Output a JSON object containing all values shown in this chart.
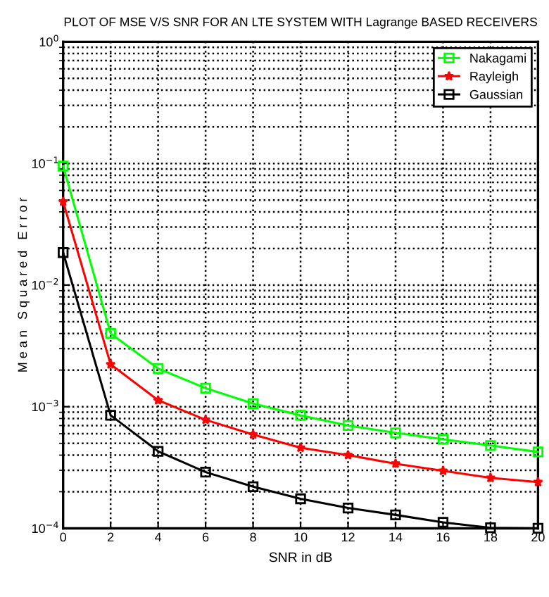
{
  "chart_data": {
    "type": "line",
    "title": "PLOT OF MSE V/S SNR FOR AN LTE SYSTEM WITH Lagrange BASED RECEIVERS",
    "xlabel": "SNR in dB",
    "ylabel": "M e a n   S q u a r e d   E r r o r",
    "x": [
      0,
      2,
      4,
      6,
      8,
      10,
      12,
      14,
      16,
      18,
      20
    ],
    "series": [
      {
        "name": "Nakagami",
        "color": "#00ff00",
        "marker": "square",
        "values": [
          0.095,
          0.004,
          0.00206,
          0.00142,
          0.00106,
          0.00085,
          0.0007,
          0.00061,
          0.00054,
          0.00048,
          0.000425
        ]
      },
      {
        "name": "Rayleigh",
        "color": "#ff0000",
        "marker": "star",
        "values": [
          0.0485,
          0.00223,
          0.00113,
          0.00078,
          0.00059,
          0.00046,
          0.0004,
          0.00034,
          0.000297,
          0.00026,
          0.00024
        ]
      },
      {
        "name": "Gaussian",
        "color": "#000000",
        "marker": "square",
        "values": [
          0.0185,
          0.00085,
          0.00043,
          0.00029,
          0.00022,
          0.000175,
          0.000147,
          0.000129,
          0.000112,
          0.000101,
          0.0001
        ]
      }
    ],
    "log": "y",
    "xlim": [
      0,
      20
    ],
    "xticks": [
      0,
      2,
      4,
      6,
      8,
      10,
      12,
      14,
      16,
      18,
      20
    ],
    "ylim": [
      0.0001,
      1
    ],
    "yticks": [
      {
        "value": 0.0001,
        "label": "10$^{−4}$"
      },
      {
        "value": 0.001,
        "label": "10$^{−3}$"
      },
      {
        "value": 0.01,
        "label": "10$^{−2}$"
      },
      {
        "value": 0.1,
        "label": "10$^{−1}$"
      },
      {
        "value": 1,
        "label": "10$^{0}$"
      }
    ],
    "grid": true,
    "legend": "top right",
    "line_style": "solid"
  }
}
